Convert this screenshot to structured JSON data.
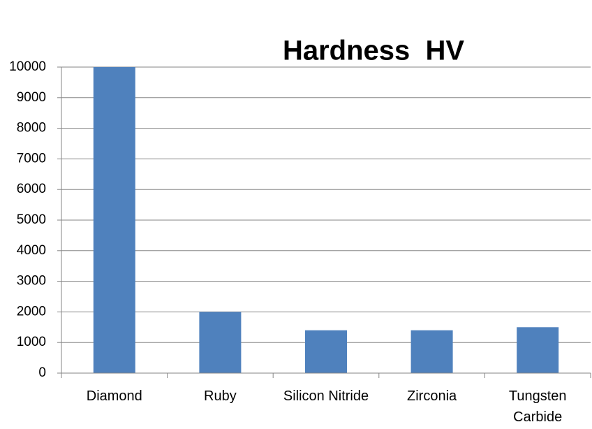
{
  "chart_data": {
    "type": "bar",
    "title": "Hardness  HV",
    "categories": [
      "Diamond",
      "Ruby",
      "Silicon Nitride",
      "Zirconia",
      "Tungsten Carbide"
    ],
    "values": [
      10000,
      2000,
      1400,
      1400,
      1500
    ],
    "color": "#4f81bd",
    "ylim": [
      0,
      10000
    ],
    "yticks": [
      0,
      1000,
      2000,
      3000,
      4000,
      5000,
      6000,
      7000,
      8000,
      9000,
      10000
    ],
    "grid": true
  }
}
